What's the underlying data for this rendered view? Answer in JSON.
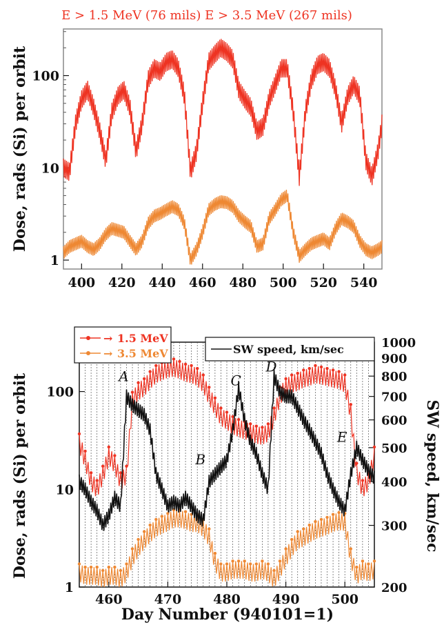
{
  "chart_data": [
    {
      "type": "line",
      "title": "E  >  1.5  MeV  (76  mils)  E  >  3.5  MeV  (267  mils)",
      "ylabel": "Dose, rads (Si) per orbit",
      "xlabel": "",
      "yscale": "log",
      "xlim": [
        391,
        549
      ],
      "ylim": [
        0.8,
        320
      ],
      "x_ticks": [
        400,
        420,
        440,
        460,
        480,
        500,
        520,
        540
      ],
      "y_ticks": [
        1,
        10,
        100
      ],
      "grid": false,
      "series": [
        {
          "color": "#ee3322",
          "x": [
            391,
            394,
            397,
            400,
            403,
            406,
            409,
            412,
            415,
            418,
            421,
            424,
            427,
            430,
            433,
            436,
            439,
            442,
            445,
            448,
            451,
            454,
            457,
            460,
            463,
            466,
            469,
            472,
            475,
            478,
            481,
            484,
            487,
            490,
            493,
            496,
            499,
            502,
            505,
            508,
            511,
            514,
            517,
            520,
            523,
            526,
            529,
            532,
            535,
            538,
            541,
            544,
            547,
            549
          ],
          "values": [
            10,
            9,
            30,
            55,
            70,
            45,
            25,
            12,
            40,
            60,
            70,
            45,
            15,
            30,
            90,
            120,
            110,
            140,
            150,
            120,
            60,
            9,
            15,
            50,
            140,
            170,
            200,
            180,
            150,
            70,
            55,
            45,
            25,
            28,
            55,
            80,
            120,
            120,
            40,
            8,
            40,
            90,
            130,
            140,
            120,
            70,
            30,
            60,
            80,
            60,
            12,
            8,
            15,
            30
          ]
        },
        {
          "color": "#ee8833",
          "x": [
            391,
            394,
            397,
            400,
            403,
            406,
            409,
            412,
            415,
            418,
            421,
            424,
            427,
            430,
            433,
            436,
            439,
            442,
            445,
            448,
            451,
            454,
            457,
            460,
            463,
            466,
            469,
            472,
            475,
            478,
            481,
            484,
            487,
            490,
            493,
            496,
            499,
            502,
            505,
            508,
            511,
            514,
            517,
            520,
            523,
            526,
            529,
            532,
            535,
            538,
            541,
            544,
            547,
            549
          ],
          "values": [
            1.2,
            1.4,
            1.5,
            1.6,
            1.4,
            1.3,
            1.5,
            1.9,
            2.2,
            2.1,
            2.0,
            1.6,
            1.3,
            1.6,
            2.5,
            3.0,
            3.2,
            3.5,
            3.8,
            3.5,
            2.5,
            1.0,
            1.3,
            2.0,
            3.5,
            4.0,
            4.3,
            4.2,
            3.8,
            3.0,
            2.6,
            2.3,
            1.4,
            1.5,
            2.8,
            3.5,
            4.5,
            5.0,
            2.0,
            1.1,
            1.3,
            1.5,
            1.6,
            1.7,
            1.5,
            2.2,
            2.8,
            2.6,
            2.3,
            1.6,
            1.3,
            1.2,
            1.3,
            1.4
          ]
        }
      ]
    },
    {
      "type": "line",
      "xlabel": "Day Number (940101=1)",
      "ylabel": "Dose, rads (Si) per orbit",
      "y2label": "SW speed, km/sec",
      "yscale": "log",
      "xlim": [
        455,
        505
      ],
      "ylim": [
        1,
        320
      ],
      "y2lim": [
        200,
        1000
      ],
      "x_ticks": [
        460,
        470,
        480,
        490,
        500
      ],
      "y_ticks": [
        1,
        10,
        100
      ],
      "y2_ticks": [
        200,
        300,
        400,
        500,
        600,
        700,
        800,
        900,
        1000
      ],
      "grid": "vertical lines at each day",
      "legend_left": "top-left",
      "legend_right": "top-right",
      "annotations": [
        {
          "text": "A",
          "x": 463,
          "y": 760
        },
        {
          "text": "B",
          "x": 476,
          "y": 440
        },
        {
          "text": "C",
          "x": 482,
          "y": 740
        },
        {
          "text": "D",
          "x": 488,
          "y": 810
        },
        {
          "text": "E",
          "x": 500,
          "y": 510
        }
      ],
      "series": [
        {
          "name": "1.5  MeV",
          "marker": "→",
          "color": "#ee3322",
          "axis": "left",
          "x": [
            455,
            456,
            457,
            458,
            459,
            460,
            461,
            462,
            463,
            464,
            465,
            466,
            467,
            468,
            469,
            470,
            471,
            472,
            473,
            474,
            475,
            476,
            477,
            478,
            479,
            480,
            481,
            482,
            483,
            484,
            485,
            486,
            487,
            488,
            489,
            490,
            491,
            492,
            493,
            494,
            495,
            496,
            497,
            498,
            499,
            500,
            501,
            502,
            503,
            504,
            505
          ],
          "values": [
            30,
            20,
            12,
            10,
            14,
            22,
            18,
            12,
            14,
            80,
            100,
            110,
            130,
            150,
            160,
            170,
            175,
            165,
            155,
            150,
            140,
            120,
            90,
            70,
            55,
            50,
            45,
            42,
            40,
            38,
            36,
            35,
            38,
            55,
            90,
            110,
            120,
            125,
            135,
            140,
            150,
            145,
            140,
            135,
            130,
            120,
            60,
            15,
            10,
            12,
            22
          ]
        },
        {
          "name": "3.5  MeV",
          "marker": "→",
          "color": "#ee8833",
          "axis": "left",
          "x": [
            455,
            456,
            457,
            458,
            459,
            460,
            461,
            462,
            463,
            464,
            465,
            466,
            467,
            468,
            469,
            470,
            471,
            472,
            473,
            474,
            475,
            476,
            477,
            478,
            479,
            480,
            481,
            482,
            483,
            484,
            485,
            486,
            487,
            488,
            489,
            490,
            491,
            492,
            493,
            494,
            495,
            496,
            497,
            498,
            499,
            500,
            501,
            502,
            503,
            504,
            505
          ],
          "values": [
            1.4,
            1.3,
            1.3,
            1.3,
            1.2,
            1.3,
            1.3,
            1.2,
            1.4,
            2.0,
            2.5,
            3.0,
            3.5,
            4.0,
            4.3,
            4.6,
            5.0,
            5.0,
            4.8,
            4.5,
            4.5,
            4.0,
            3.2,
            1.8,
            1.4,
            1.4,
            1.5,
            1.5,
            1.5,
            1.4,
            1.4,
            1.5,
            1.4,
            1.2,
            1.5,
            2.0,
            2.5,
            3.0,
            3.2,
            3.5,
            3.8,
            4.0,
            4.2,
            4.5,
            4.7,
            4.6,
            2.0,
            1.3,
            1.5,
            1.4,
            1.5
          ]
        },
        {
          "name": "SW   speed,   km/sec",
          "color": "#111111",
          "axis": "right",
          "x": [
            455,
            456,
            457,
            458,
            459,
            460,
            461,
            462,
            463,
            464,
            465,
            466,
            467,
            468,
            469,
            470,
            471,
            472,
            473,
            474,
            475,
            476,
            477,
            478,
            479,
            480,
            481,
            482,
            483,
            484,
            485,
            486,
            487,
            488,
            489,
            490,
            491,
            492,
            493,
            494,
            495,
            496,
            497,
            498,
            499,
            500,
            501,
            502,
            503,
            504,
            505
          ],
          "values": [
            400,
            380,
            350,
            330,
            300,
            320,
            360,
            340,
            700,
            660,
            640,
            620,
            560,
            420,
            380,
            340,
            350,
            340,
            360,
            340,
            320,
            310,
            400,
            420,
            440,
            460,
            560,
            740,
            600,
            520,
            480,
            420,
            380,
            800,
            720,
            700,
            700,
            650,
            600,
            560,
            520,
            480,
            420,
            380,
            350,
            330,
            420,
            500,
            460,
            430,
            410
          ]
        }
      ]
    }
  ]
}
